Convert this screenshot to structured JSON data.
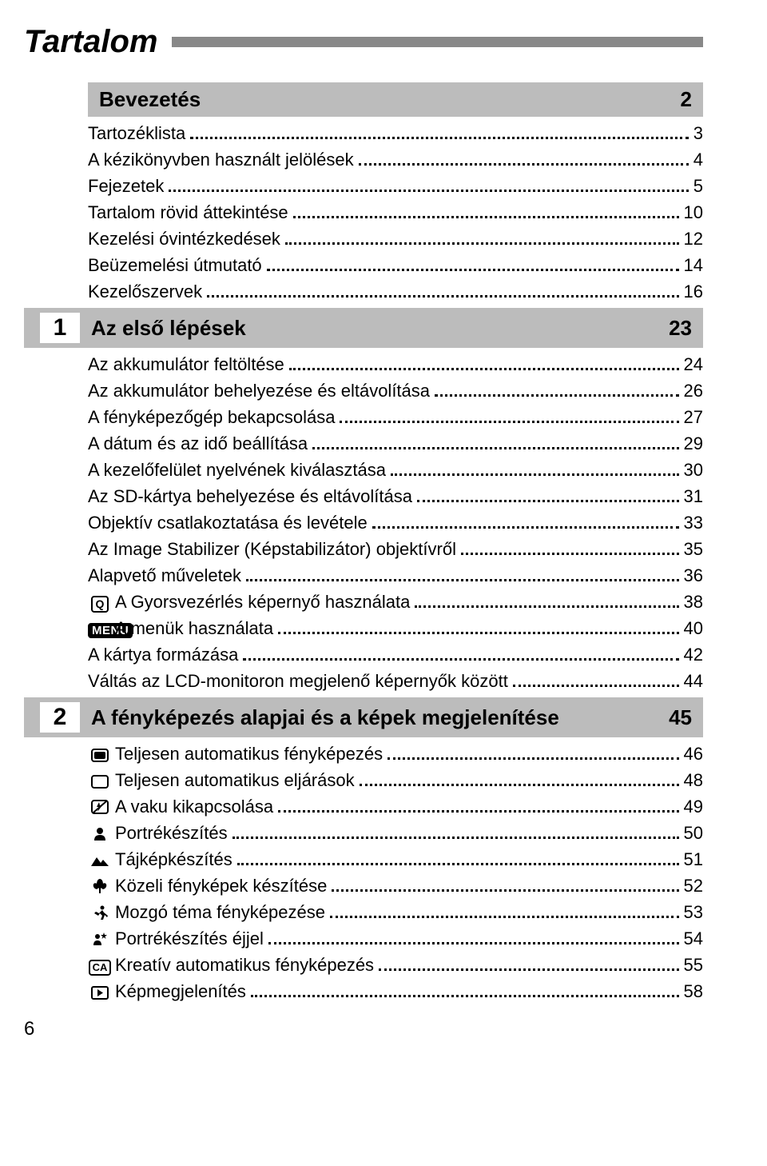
{
  "page_title": "Tartalom",
  "page_number": "6",
  "colors": {
    "section_bg": "#bcbcbc",
    "title_bar": "#888888",
    "text": "#000000",
    "bg": "#ffffff"
  },
  "fonts": {
    "title_size": 40,
    "section_title_size": 26,
    "entry_size": 22
  },
  "sections": [
    {
      "chapter_number": "",
      "title": "Bevezetés",
      "page": "2",
      "entries": [
        {
          "icon": "",
          "label": "Tartozéklista",
          "page": "3"
        },
        {
          "icon": "",
          "label": "A kézikönyvben használt jelölések",
          "page": "4"
        },
        {
          "icon": "",
          "label": "Fejezetek",
          "page": "5"
        },
        {
          "icon": "",
          "label": "Tartalom rövid áttekintése",
          "page": "10"
        },
        {
          "icon": "",
          "label": "Kezelési óvintézkedések",
          "page": "12"
        },
        {
          "icon": "",
          "label": "Beüzemelési útmutató",
          "page": "14"
        },
        {
          "icon": "",
          "label": "Kezelőszervek",
          "page": "16"
        }
      ]
    },
    {
      "chapter_number": "1",
      "title": "Az első lépések",
      "page": "23",
      "entries": [
        {
          "icon": "",
          "label": "Az akkumulátor feltöltése",
          "page": "24"
        },
        {
          "icon": "",
          "label": "Az akkumulátor behelyezése és eltávolítása",
          "page": "26"
        },
        {
          "icon": "",
          "label": "A fényképezőgép bekapcsolása",
          "page": "27"
        },
        {
          "icon": "",
          "label": "A dátum és az idő beállítása",
          "page": "29"
        },
        {
          "icon": "",
          "label": "A kezelőfelület nyelvének kiválasztása",
          "page": "30"
        },
        {
          "icon": "",
          "label": "Az SD-kártya behelyezése és eltávolítása",
          "page": "31"
        },
        {
          "icon": "",
          "label": "Objektív csatlakoztatása és levétele",
          "page": "33"
        },
        {
          "icon": "",
          "label": "Az Image Stabilizer (Képstabilizátor) objektívről",
          "page": "35"
        },
        {
          "icon": "",
          "label": "Alapvető műveletek",
          "page": "36"
        },
        {
          "icon": "q",
          "label": " A Gyorsvezérlés képernyő használata",
          "page": "38"
        },
        {
          "icon": "menu",
          "label": " A menük használata",
          "page": "40"
        },
        {
          "icon": "",
          "label": "A kártya formázása",
          "page": "42"
        },
        {
          "icon": "",
          "label": "Váltás az LCD-monitoron megjelenő képernyők között",
          "page": "44"
        }
      ]
    },
    {
      "chapter_number": "2",
      "title": "A fényképezés alapjai és a képek megjelenítése",
      "page": "45",
      "entries": [
        {
          "icon": "rect-filled",
          "label": " Teljesen automatikus fényképezés",
          "page": "46"
        },
        {
          "icon": "rect-empty",
          "label": " Teljesen automatikus eljárások",
          "page": "48"
        },
        {
          "icon": "flash-off",
          "label": " A vaku kikapcsolása",
          "page": "49"
        },
        {
          "icon": "portrait",
          "label": " Portrékészítés",
          "page": "50"
        },
        {
          "icon": "landscape",
          "label": " Tájképkészítés",
          "page": "51"
        },
        {
          "icon": "macro",
          "label": " Közeli fényképek készítése",
          "page": "52"
        },
        {
          "icon": "sports",
          "label": " Mozgó téma fényképezése",
          "page": "53"
        },
        {
          "icon": "night-portrait",
          "label": " Portrékészítés éjjel",
          "page": "54"
        },
        {
          "icon": "ca",
          "label": " Kreatív automatikus fényképezés",
          "page": "55"
        },
        {
          "icon": "play",
          "label": " Képmegjelenítés",
          "page": "58"
        }
      ]
    }
  ],
  "icons": {
    "q": "Q",
    "menu": "MENU",
    "ca": "CA"
  }
}
